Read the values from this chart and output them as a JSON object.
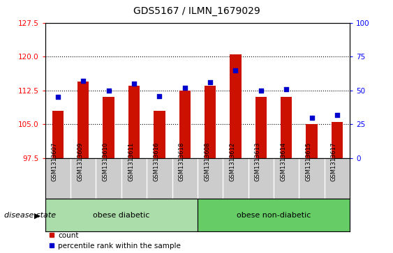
{
  "title": "GDS5167 / ILMN_1679029",
  "samples": [
    "GSM1313607",
    "GSM1313609",
    "GSM1313610",
    "GSM1313611",
    "GSM1313616",
    "GSM1313618",
    "GSM1313608",
    "GSM1313612",
    "GSM1313613",
    "GSM1313614",
    "GSM1313615",
    "GSM1313617"
  ],
  "bar_values": [
    108.0,
    114.5,
    111.0,
    113.5,
    108.0,
    112.5,
    113.5,
    120.5,
    111.0,
    111.0,
    105.0,
    105.5
  ],
  "percentile_values": [
    45,
    57,
    50,
    55,
    46,
    52,
    56,
    65,
    50,
    51,
    30,
    32
  ],
  "bar_bottom": 97.5,
  "ylim_left": [
    97.5,
    127.5
  ],
  "ylim_right": [
    0,
    100
  ],
  "yticks_left": [
    97.5,
    105,
    112.5,
    120,
    127.5
  ],
  "yticks_right": [
    0,
    25,
    50,
    75,
    100
  ],
  "bar_color": "#cc1100",
  "dot_color": "#0000cc",
  "group1_label": "obese diabetic",
  "group2_label": "obese non-diabetic",
  "group1_count": 6,
  "group2_count": 6,
  "group1_color": "#aaddaa",
  "group2_color": "#66cc66",
  "disease_state_label": "disease state",
  "legend_bar_label": "count",
  "legend_dot_label": "percentile rank within the sample",
  "xticklabel_area_color": "#cccccc"
}
